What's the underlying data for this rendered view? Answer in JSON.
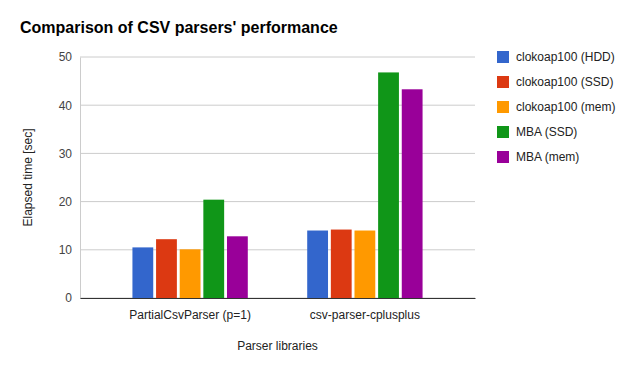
{
  "chart_data": {
    "type": "bar",
    "title": "Comparison of CSV parsers' performance",
    "x_label": "Parser libraries",
    "y_label": "Elapsed time [sec]",
    "categories": [
      "PartialCsvParser (p=1)",
      "csv-parser-cplusplus"
    ],
    "series": [
      {
        "name": "clokoap100 (HDD)",
        "color": "#3366cc",
        "values": [
          10.5,
          14.0
        ]
      },
      {
        "name": "clokoap100 (SSD)",
        "color": "#dc3912",
        "values": [
          12.2,
          14.2
        ]
      },
      {
        "name": "clokoap100 (mem)",
        "color": "#ff9900",
        "values": [
          10.1,
          14.0
        ]
      },
      {
        "name": "MBA (SSD)",
        "color": "#109618",
        "values": [
          20.4,
          46.8
        ]
      },
      {
        "name": "MBA (mem)",
        "color": "#990099",
        "values": [
          12.8,
          43.3
        ]
      }
    ],
    "ylim": [
      0,
      50
    ],
    "yticks": [
      0,
      10,
      20,
      30,
      40,
      50
    ],
    "grid": true,
    "legend": "right"
  }
}
